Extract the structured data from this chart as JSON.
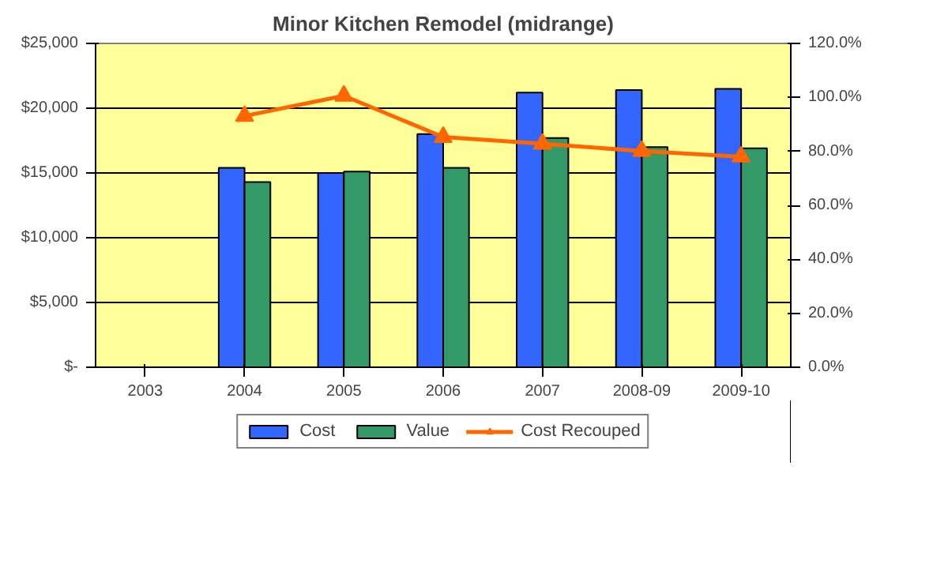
{
  "chart_data": {
    "type": "bar",
    "title": "Minor Kitchen Remodel (midrange)",
    "categories": [
      "2003",
      "2004",
      "2005",
      "2006",
      "2007",
      "2008-09",
      "2009-10"
    ],
    "series": [
      {
        "name": "Cost",
        "color": "#3366ff",
        "values": [
          null,
          15400,
          15000,
          18000,
          21200,
          21400,
          21500
        ]
      },
      {
        "name": "Value",
        "color": "#339966",
        "values": [
          null,
          14300,
          15100,
          15400,
          17700,
          17000,
          16900
        ]
      },
      {
        "name": "Cost Recouped",
        "type": "line",
        "axis": "y2",
        "color": "#ff6600",
        "marker": "triangle",
        "values": [
          null,
          93.1,
          100.6,
          85.3,
          82.8,
          80.1,
          78.0
        ]
      }
    ],
    "ylim": [
      0,
      25000
    ],
    "yticks": [
      {
        "value": 0,
        "label": "$-"
      },
      {
        "value": 5000,
        "label": "$5,000"
      },
      {
        "value": 10000,
        "label": "$10,000"
      },
      {
        "value": 15000,
        "label": "$15,000"
      },
      {
        "value": 20000,
        "label": "$20,000"
      },
      {
        "value": 25000,
        "label": "$25,000"
      }
    ],
    "y2lim": [
      0,
      120
    ],
    "y2ticks": [
      {
        "value": 0,
        "label": "0.0%"
      },
      {
        "value": 20,
        "label": "20.0%"
      },
      {
        "value": 40,
        "label": "40.0%"
      },
      {
        "value": 60,
        "label": "60.0%"
      },
      {
        "value": 80,
        "label": "80.0%"
      },
      {
        "value": 100,
        "label": "100.0%"
      },
      {
        "value": 120,
        "label": "120.0%"
      }
    ],
    "grid": "y",
    "legend": "bottom"
  }
}
